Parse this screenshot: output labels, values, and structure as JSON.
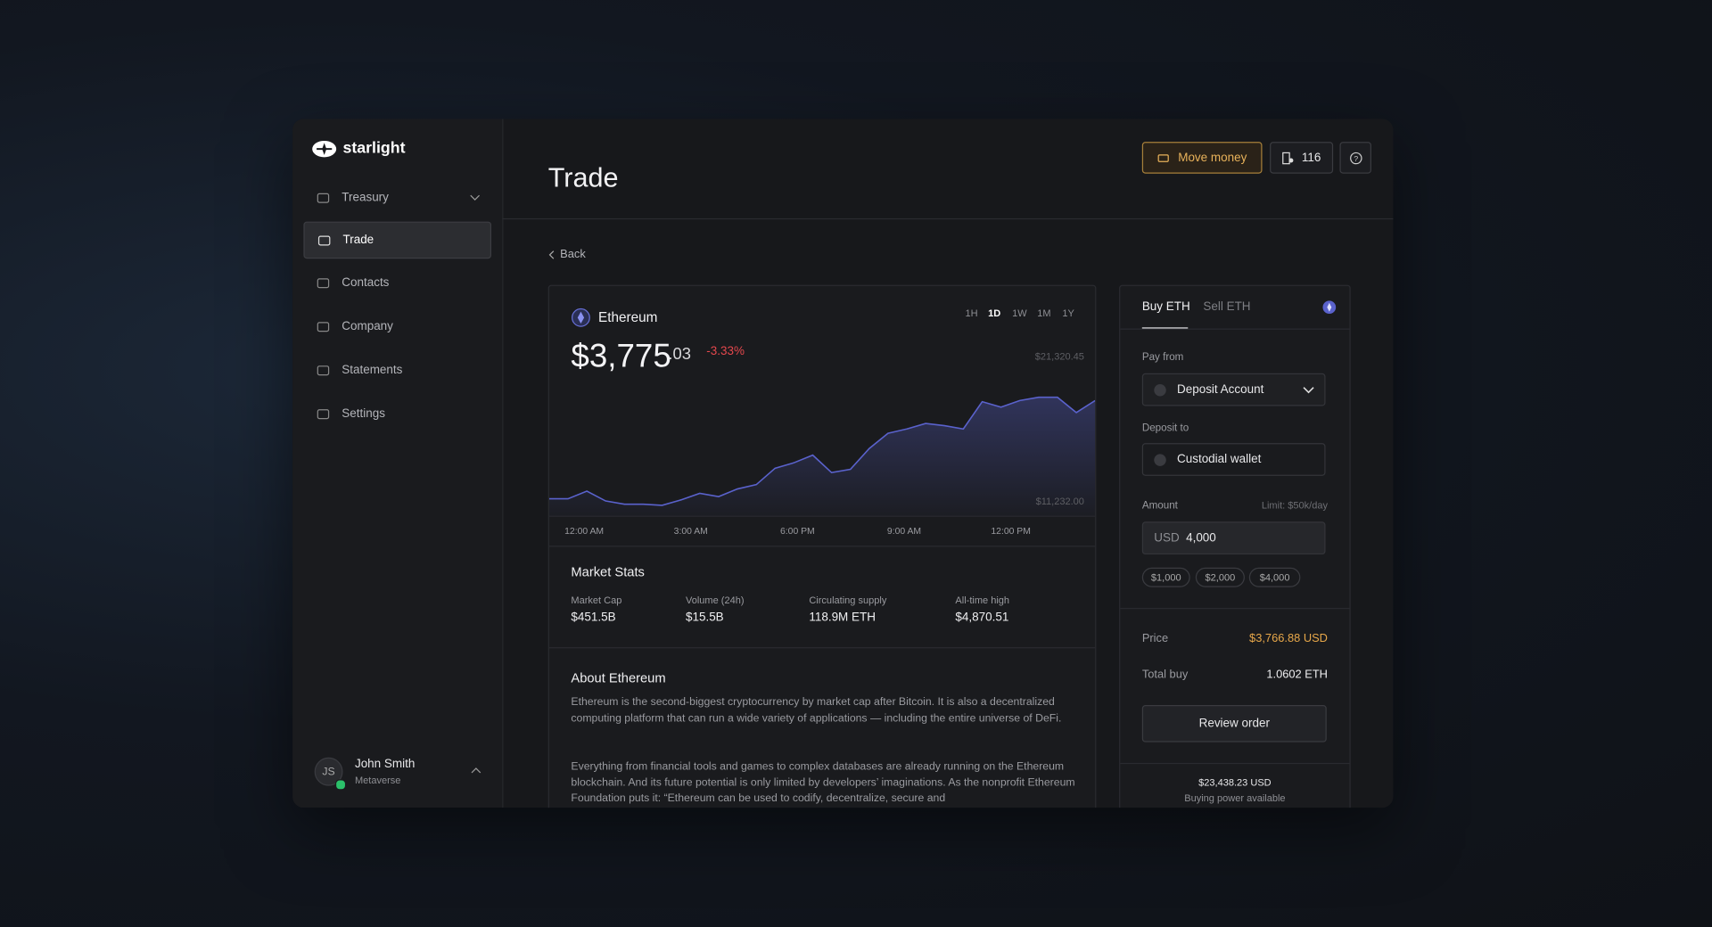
{
  "brand": "starlight",
  "nav": [
    {
      "label": "Treasury"
    },
    {
      "label": "Trade"
    },
    {
      "label": "Contacts"
    },
    {
      "label": "Company"
    },
    {
      "label": "Statements"
    },
    {
      "label": "Settings"
    }
  ],
  "active_nav": "Trade",
  "user": {
    "initials": "JS",
    "name": "John Smith",
    "org": "Metaverse"
  },
  "header": {
    "title": "Trade",
    "move_money": "Move money",
    "count": 116
  },
  "back": "Back",
  "asset": {
    "name": "Ethereum",
    "price_main": "$3,775",
    "price_cents": ".03",
    "change": "-3.33%"
  },
  "ranges": [
    "1H",
    "1D",
    "1W",
    "1M",
    "1Y"
  ],
  "selected_range": "1D",
  "chart_data": {
    "type": "area",
    "color": "#5a62cc",
    "values": [
      11460,
      11460,
      11991,
      11308,
      11080,
      11080,
      11004,
      11384,
      11839,
      11611,
      12142,
      12446,
      13583,
      13963,
      14494,
      13280,
      13508,
      14949,
      16011,
      16314,
      16693,
      16542,
      16314,
      18210,
      17831,
      18286,
      18514,
      18514,
      17452,
      18286
    ],
    "x_labels": [
      "12:00 AM",
      "3:00 AM",
      "6:00 PM",
      "9:00 AM",
      "12:00 PM"
    ],
    "ylim": [
      11232,
      21320.45
    ],
    "yticks": [
      {
        "value": 21320.45,
        "label": "$21,320.45"
      },
      {
        "value": 11232,
        "label": "$11,232.00"
      }
    ]
  },
  "stats": {
    "title": "Market Stats",
    "items": [
      {
        "label": "Market Cap",
        "value": "$451.5B"
      },
      {
        "label": "Volume (24h)",
        "value": "$15.5B"
      },
      {
        "label": "Circulating supply",
        "value": "118.9M ETH"
      },
      {
        "label": "All-time high",
        "value": "$4,870.51"
      }
    ]
  },
  "about": {
    "title": "About Ethereum",
    "paragraphs": [
      "Ethereum is the second-biggest cryptocurrency by market cap after Bitcoin. It is also a decentralized computing platform that can run a wide variety of applications — including the entire universe of DeFi.",
      "Everything from financial tools and games to complex databases are already running on the Ethereum blockchain. And its future potential is only limited by developers’ imaginations. As the nonprofit Ethereum Foundation puts it: “Ethereum can be used to codify, decentralize, secure and"
    ]
  },
  "order": {
    "tabs": [
      "Buy ETH",
      "Sell ETH"
    ],
    "pay_from_label": "Pay from",
    "pay_from": "Deposit Account",
    "deposit_to_label": "Deposit to",
    "deposit_to": "Custodial wallet",
    "amount_label": "Amount",
    "limit": "Limit: $50k/day",
    "currency": "USD",
    "amount": "4,000",
    "presets": [
      "$1,000",
      "$2,000",
      "$4,000"
    ],
    "price_label": "Price",
    "price": "$3,766.88 USD",
    "total_label": "Total buy",
    "total": "1.0602 ETH",
    "review": "Review order",
    "buying_power": "$23,438.23 USD",
    "buying_power_label": "Buying power available"
  }
}
